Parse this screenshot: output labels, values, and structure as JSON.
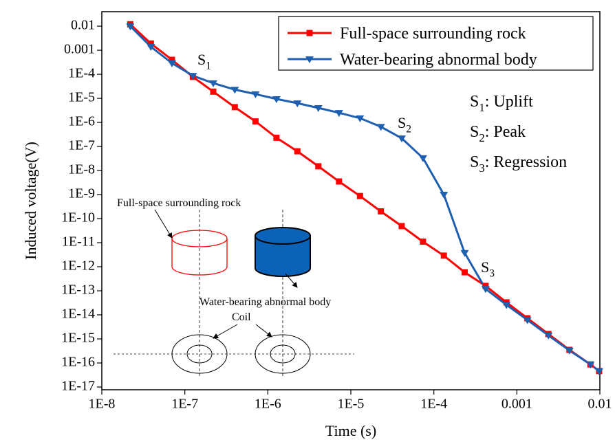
{
  "chart_data": {
    "type": "line",
    "x_label": "Time (s)",
    "y_label": "Induced voltage(V)",
    "xscale": "log",
    "yscale": "log",
    "xlim": [
      1e-08,
      0.01
    ],
    "ylim": [
      7.7e-18,
      0.04
    ],
    "xticks": [
      {
        "value": 1e-08,
        "label": "1E-8"
      },
      {
        "value": 1e-07,
        "label": "1E-7"
      },
      {
        "value": 1e-06,
        "label": "1E-6"
      },
      {
        "value": 1e-05,
        "label": "1E-5"
      },
      {
        "value": 0.0001,
        "label": "1E-4"
      },
      0.001,
      0.01
    ],
    "yticks": [
      0.01,
      0.001,
      {
        "value": 0.0001,
        "label": "1E-4"
      },
      {
        "value": 1e-05,
        "label": "1E-5"
      },
      {
        "value": 1e-06,
        "label": "1E-6"
      },
      {
        "value": 1e-07,
        "label": "1E-7"
      },
      {
        "value": 1e-08,
        "label": "1E-8"
      },
      {
        "value": 1e-09,
        "label": "1E-9"
      },
      {
        "value": 1e-10,
        "label": "1E-10"
      },
      {
        "value": 1e-11,
        "label": "1E-11"
      },
      {
        "value": 1e-12,
        "label": "1E-12"
      },
      {
        "value": 1e-13,
        "label": "1E-13"
      },
      {
        "value": 1e-14,
        "label": "1E-14"
      },
      {
        "value": 1e-15,
        "label": "1E-15"
      },
      {
        "value": 1e-16,
        "label": "1E-16"
      },
      {
        "value": 1e-17,
        "label": "1E-17"
      }
    ],
    "legend": "top-right",
    "x": [
      2.2e-08,
      3.9e-08,
      7e-08,
      1.25e-07,
      2.2e-07,
      4e-07,
      7.1e-07,
      1.27e-06,
      2.27e-06,
      4.06e-06,
      7.2e-06,
      1.29e-05,
      2.3e-05,
      4.1e-05,
      7.4e-05,
      0.000132,
      0.000235,
      0.00042,
      0.00075,
      0.00134,
      0.0024,
      0.0043,
      0.0077,
      0.0098
    ],
    "series": [
      {
        "name": "Full-space surrounding rock",
        "color": "#ff0000",
        "marker": "square",
        "values": [
          0.012,
          0.0019,
          0.0004,
          7.8e-05,
          1.9e-05,
          4.3e-06,
          1.1e-06,
          2.3e-07,
          6.3e-08,
          1.5e-08,
          3.5e-09,
          8.7e-10,
          2e-10,
          4.9e-11,
          1.1e-11,
          2.9e-12,
          5.9e-13,
          1.6e-13,
          3.3e-14,
          7.2e-15,
          1.6e-15,
          3.5e-16,
          8.7e-17,
          4.6e-17
        ]
      },
      {
        "name": "Water-bearing abnormal body",
        "color": "#1f5fb0",
        "marker": "triangle-down",
        "values": [
          0.01,
          0.0014,
          0.00029,
          8.7e-05,
          4.3e-05,
          2.3e-05,
          1.5e-05,
          9.4e-06,
          6.3e-06,
          4e-06,
          2.5e-06,
          1.5e-06,
          6.6e-07,
          2.2e-07,
          3.3e-08,
          1e-09,
          3.8e-12,
          1.2e-13,
          2.6e-14,
          6.1e-15,
          1.4e-15,
          3.3e-16,
          8.7e-17,
          4.6e-17
        ]
      }
    ],
    "annotations": [
      {
        "symbol": "S",
        "subscript": "1"
      },
      {
        "symbol": "S",
        "subscript": "2"
      },
      {
        "symbol": "S",
        "subscript": "3"
      }
    ],
    "notes": [
      {
        "symbol": "S",
        "subscript": "1",
        "text": ": Uplift"
      },
      {
        "symbol": "S",
        "subscript": "2",
        "text": ": Peak"
      },
      {
        "symbol": "S",
        "subscript": "3",
        "text": ": Regression"
      }
    ],
    "inset": {
      "rock_label": "Full-space surrounding rock",
      "body_label": "Water-bearing abnormal body",
      "coil_label": "Coil"
    }
  }
}
